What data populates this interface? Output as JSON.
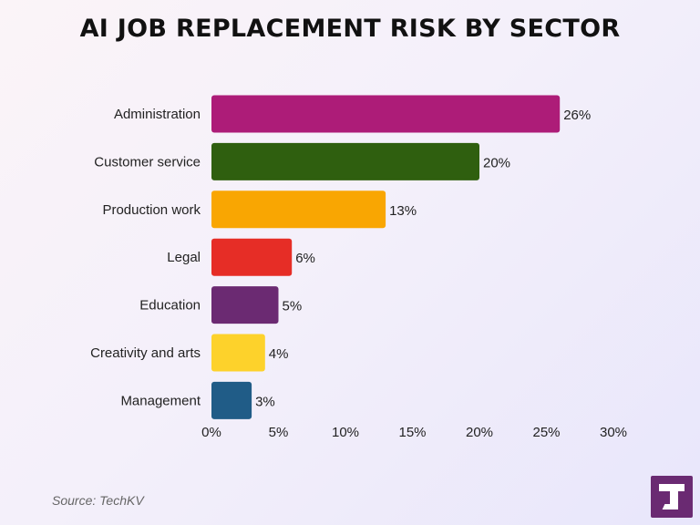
{
  "header": {
    "title": "AI JOB REPLACEMENT RISK BY SECTOR"
  },
  "footer": {
    "source": "Source: TechKV"
  },
  "logo": {
    "icon": "techkv-logo-icon",
    "color": "#6a2a72"
  },
  "chart_data": {
    "type": "bar",
    "orientation": "horizontal",
    "title": "AI JOB REPLACEMENT RISK BY SECTOR",
    "categories": [
      "Administration",
      "Customer service",
      "Production work",
      "Legal",
      "Education",
      "Creativity and arts",
      "Management"
    ],
    "values": [
      26,
      20,
      13,
      6,
      5,
      4,
      3
    ],
    "value_labels": [
      "26%",
      "20%",
      "13%",
      "6%",
      "5%",
      "4%",
      "3%"
    ],
    "colors": [
      "#ad1c78",
      "#2f5f0f",
      "#f9a602",
      "#e62d26",
      "#6b2a72",
      "#fdd22b",
      "#205c87"
    ],
    "xlim": [
      0,
      30
    ],
    "x_ticks": [
      0,
      5,
      10,
      15,
      20,
      25,
      30
    ],
    "x_tick_labels": [
      "0%",
      "5%",
      "10%",
      "15%",
      "20%",
      "25%",
      "30%"
    ],
    "grid": false,
    "legend": "none"
  }
}
